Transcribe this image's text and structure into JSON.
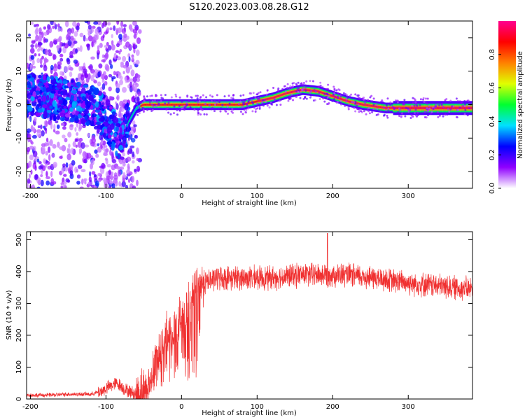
{
  "title": "S120.2023.003.08.28.G12",
  "colors": {
    "snr_line": "#f03030",
    "frame": "#000000"
  },
  "chart_data": [
    {
      "type": "heatmap",
      "xlabel": "Height of straight line (km)",
      "ylabel": "Frequency (Hz)",
      "xlim": [
        -205,
        385
      ],
      "ylim": [
        -25,
        25
      ],
      "x_ticks": [
        -200,
        -100,
        0,
        100,
        200,
        300
      ],
      "y_ticks": [
        -20,
        -10,
        0,
        10,
        20
      ],
      "colorbar": {
        "label": "Normalized spectral amplitude",
        "range": [
          0,
          1
        ],
        "ticks": [
          "0.0",
          "0.2",
          "0.4",
          "0.6",
          "0.8"
        ],
        "colormap": [
          "#ffffff",
          "#9000ff",
          "#0000ff",
          "#00e0ff",
          "#00ff30",
          "#e0ff00",
          "#ff8000",
          "#ff0000",
          "#ff0090"
        ]
      },
      "ridge_center_frequency": {
        "x": [
          -200,
          -170,
          -140,
          -120,
          -100,
          -90,
          -80,
          -75,
          -70,
          -60,
          -50,
          -40,
          -20,
          0,
          40,
          80,
          100,
          120,
          140,
          160,
          180,
          200,
          220,
          240,
          270,
          300,
          340,
          385
        ],
        "y": [
          3,
          2,
          1,
          0,
          -4,
          -8,
          -11,
          -8,
          -5,
          -1,
          0,
          0,
          0,
          0,
          0,
          0,
          1,
          2,
          3.5,
          4.5,
          4,
          2.5,
          1,
          0,
          -1,
          -1,
          -1,
          -1
        ]
      }
    },
    {
      "type": "line",
      "xlabel": "Height of straight line (km)",
      "ylabel": "SNR (10 * v/v)",
      "xlim": [
        -205,
        385
      ],
      "ylim": [
        0,
        525
      ],
      "x_ticks": [
        -200,
        -100,
        0,
        100,
        200,
        300
      ],
      "y_ticks": [
        0,
        100,
        200,
        300,
        400,
        500
      ],
      "trend": {
        "x": [
          -205,
          -180,
          -150,
          -120,
          -105,
          -95,
          -85,
          -75,
          -60,
          -45,
          -35,
          -25,
          -15,
          -5,
          5,
          15,
          25,
          35,
          50,
          80,
          120,
          160,
          200,
          240,
          280,
          320,
          360,
          385
        ],
        "y": [
          12,
          12,
          15,
          15,
          25,
          40,
          50,
          30,
          15,
          30,
          120,
          190,
          200,
          230,
          270,
          320,
          360,
          370,
          380,
          380,
          380,
          390,
          390,
          385,
          370,
          360,
          350,
          345
        ]
      },
      "peak": {
        "x": 193,
        "y": 520
      }
    }
  ]
}
